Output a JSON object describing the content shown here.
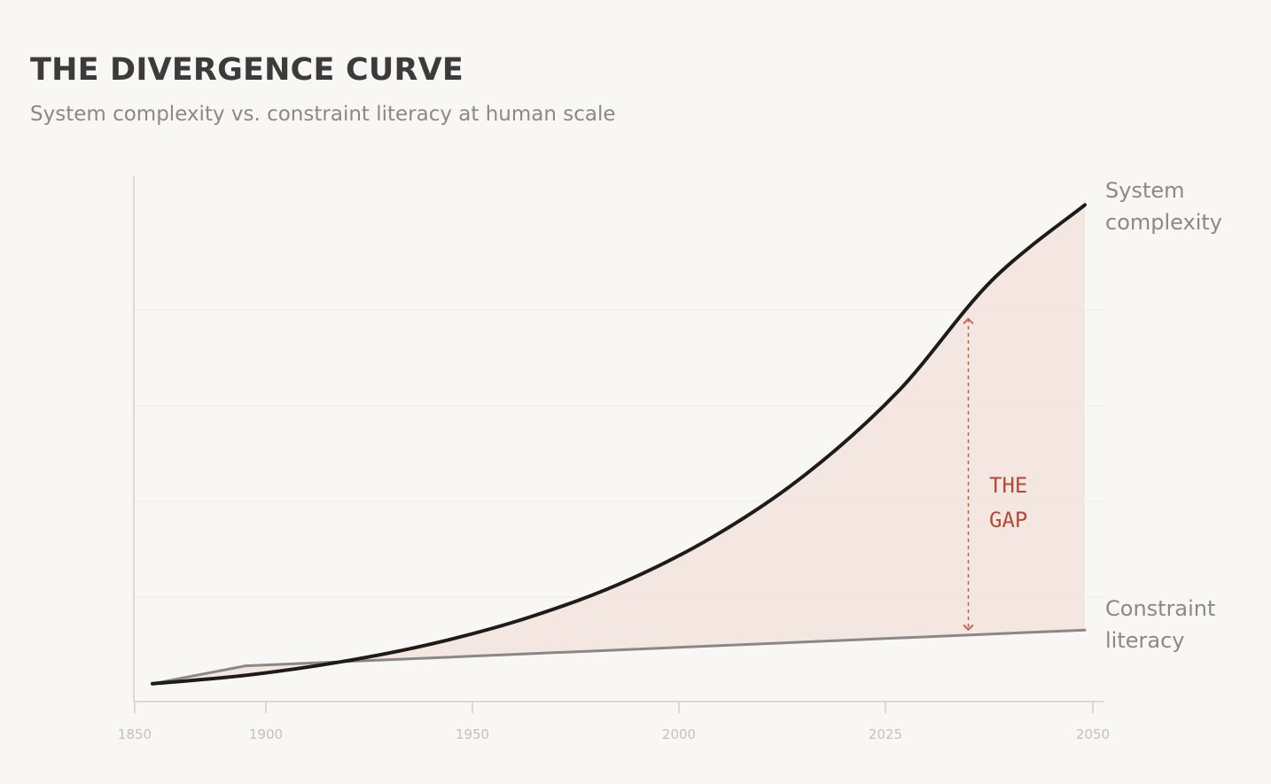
{
  "header": {
    "title": "THE DIVERGENCE CURVE",
    "subtitle": "System complexity vs. constraint literacy at human scale"
  },
  "chart_data": {
    "type": "line",
    "title": "THE DIVERGENCE CURVE",
    "subtitle": "System complexity vs. constraint literacy at human scale",
    "xlabel": "",
    "ylabel": "",
    "x_ticks": [
      "1850",
      "1900",
      "1950",
      "2000",
      "2025",
      "2050"
    ],
    "y_gridlines": 4,
    "ylim": [
      0,
      100
    ],
    "series": [
      {
        "name": "System complexity",
        "label_lines": [
          "System",
          "complexity"
        ],
        "color": "#1e1c1b",
        "points": [
          [
            0,
            3.4
          ],
          [
            0.1,
            5.0
          ],
          [
            0.2,
            7.5
          ],
          [
            0.3,
            11.0
          ],
          [
            0.4,
            15.8
          ],
          [
            0.5,
            22.3
          ],
          [
            0.6,
            31.2
          ],
          [
            0.7,
            43.1
          ],
          [
            0.8,
            59.0
          ],
          [
            0.9,
            80.0
          ],
          [
            1.0,
            94.4
          ]
        ]
      },
      {
        "name": "Constraint literacy",
        "label_lines": [
          "Constraint",
          "literacy"
        ],
        "color": "#8a8886",
        "points": [
          [
            0,
            3.4
          ],
          [
            0.1,
            6.8
          ],
          [
            1.0,
            13.6
          ]
        ]
      }
    ],
    "annotations": [
      {
        "label_lines": [
          "THE",
          "GAP"
        ],
        "at_fraction": 0.875,
        "color": "#b84a35",
        "fill_color": "#f3e4de"
      }
    ]
  }
}
